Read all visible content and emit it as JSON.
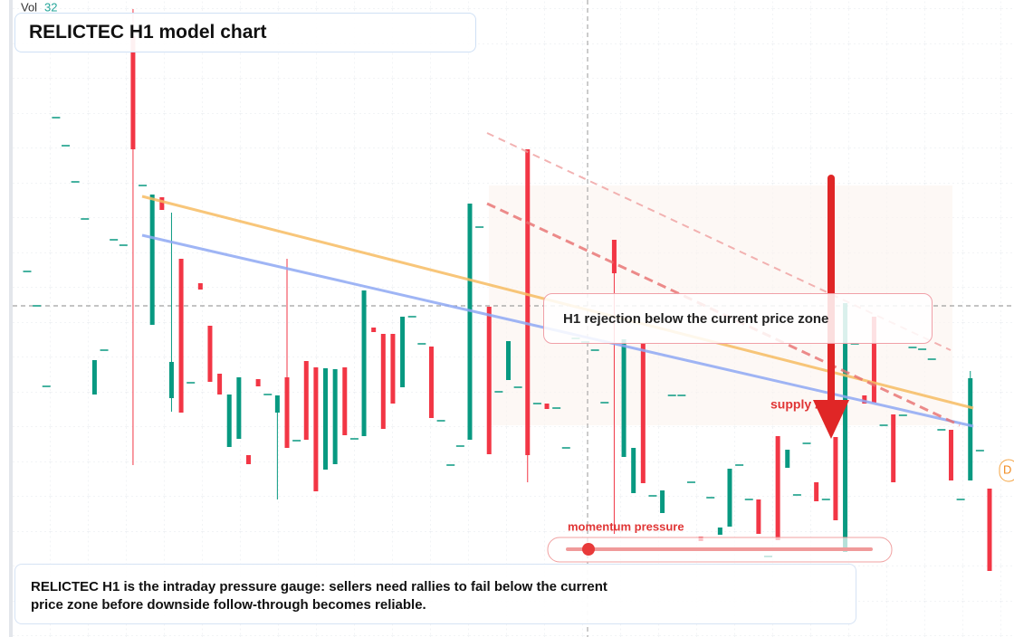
{
  "chart_data": {
    "type": "candlestick",
    "title": "RELICTEC H1 model chart",
    "volume_label": "Vol",
    "volume_value": 32,
    "annotation": "H1 rejection below the current price zone",
    "zone_label": "supply zone",
    "gauge_label": "momentum pressure",
    "edge_label": "D",
    "note": "RELICTEC H1 is the intraday pressure gauge: sellers need rallies to fail below the current price zone before downside follow-through becomes reliable.",
    "up_color": "#089981",
    "down_color": "#f23645",
    "ylim": [
      0,
      704
    ],
    "candles": [
      [
        404,
        404,
        404,
        404
      ],
      [
        366,
        366,
        366,
        366
      ],
      [
        277,
        277,
        277,
        277
      ],
      [
        574,
        574,
        574,
        574
      ],
      [
        543,
        543,
        543,
        543
      ],
      [
        503,
        503,
        503,
        503
      ],
      [
        462,
        462,
        462,
        462
      ],
      [
        268,
        306,
        268,
        306
      ],
      [
        317,
        317,
        317,
        317
      ],
      [
        439,
        439,
        439,
        439
      ],
      [
        433,
        433,
        433,
        433
      ],
      [
        664,
        694,
        190,
        539
      ],
      [
        499,
        499,
        499,
        499
      ],
      [
        345,
        489,
        345,
        489
      ],
      [
        486,
        486,
        472,
        472
      ],
      [
        264,
        469,
        249,
        304
      ],
      [
        418,
        418,
        248,
        248
      ],
      [
        281,
        281,
        281,
        281
      ],
      [
        391,
        391,
        384,
        384
      ],
      [
        344,
        344,
        282,
        282
      ],
      [
        291,
        291,
        268,
        268
      ],
      [
        210,
        268,
        210,
        268
      ],
      [
        219,
        287,
        219,
        287
      ],
      [
        201,
        201,
        191,
        191
      ],
      [
        285,
        285,
        277,
        277
      ],
      [
        268,
        268,
        268,
        268
      ],
      [
        248,
        267,
        152,
        267
      ],
      [
        287,
        418,
        209,
        209
      ],
      [
        217,
        217,
        217,
        217
      ],
      [
        305,
        305,
        218,
        218
      ],
      [
        298,
        298,
        161,
        161
      ],
      [
        185,
        297,
        185,
        297
      ],
      [
        191,
        296,
        191,
        296
      ],
      [
        298,
        298,
        223,
        223
      ],
      [
        219,
        219,
        219,
        219
      ],
      [
        222,
        383,
        222,
        383
      ],
      [
        342,
        342,
        337,
        337
      ],
      [
        335,
        335,
        230,
        230
      ],
      [
        335,
        335,
        258,
        258
      ],
      [
        276,
        354,
        276,
        354
      ],
      [
        354,
        354,
        354,
        354
      ],
      [
        324,
        324,
        324,
        324
      ],
      [
        321,
        321,
        242,
        242
      ],
      [
        239,
        239,
        239,
        239
      ],
      [
        190,
        190,
        190,
        190
      ],
      [
        211,
        211,
        211,
        211
      ],
      [
        218,
        479,
        218,
        479
      ],
      [
        453,
        453,
        453,
        453
      ],
      [
        365,
        365,
        202,
        202
      ],
      [
        271,
        271,
        271,
        271
      ],
      [
        284,
        327,
        284,
        327
      ],
      [
        276,
        276,
        276,
        276
      ],
      [
        539,
        539,
        171,
        201
      ],
      [
        258,
        258,
        258,
        258
      ],
      [
        258,
        258,
        252,
        252
      ],
      [
        253,
        253,
        253,
        253
      ],
      [
        209,
        209,
        209,
        209
      ],
      [
        330,
        330,
        330,
        330
      ],
      [
        326,
        326,
        326,
        326
      ],
      [
        317,
        317,
        317,
        317
      ],
      [
        259,
        259,
        259,
        259
      ],
      [
        439,
        439,
        114,
        402
      ],
      [
        199,
        329,
        199,
        329
      ],
      [
        159,
        209,
        159,
        209
      ],
      [
        324,
        324,
        170,
        170
      ],
      [
        156,
        156,
        156,
        156
      ],
      [
        137,
        162,
        137,
        162
      ],
      [
        267,
        267,
        267,
        267
      ],
      [
        267,
        267,
        267,
        267
      ],
      [
        171,
        171,
        171,
        171
      ],
      [
        111,
        111,
        106,
        106
      ],
      [
        154,
        154,
        154,
        154
      ],
      [
        113,
        121,
        113,
        121
      ],
      [
        122,
        186,
        122,
        186
      ],
      [
        190,
        190,
        190,
        190
      ],
      [
        152,
        152,
        152,
        152
      ],
      [
        152,
        152,
        114,
        114
      ],
      [
        89,
        89,
        89,
        89
      ],
      [
        222,
        222,
        107,
        107
      ],
      [
        187,
        207,
        187,
        207
      ],
      [
        157,
        157,
        157,
        157
      ],
      [
        214,
        214,
        214,
        214
      ],
      [
        171,
        171,
        150,
        150
      ],
      [
        152,
        152,
        152,
        152
      ],
      [
        221,
        221,
        129,
        129
      ],
      [
        94,
        369,
        94,
        369
      ],
      [
        324,
        324,
        324,
        324
      ],
      [
        267,
        267,
        258,
        258
      ],
      [
        354,
        354,
        259,
        259
      ],
      [
        234,
        234,
        234,
        234
      ],
      [
        246,
        246,
        171,
        171
      ],
      [
        245,
        245,
        245,
        245
      ],
      [
        320,
        320,
        320,
        320
      ],
      [
        318,
        318,
        318,
        318
      ],
      [
        307,
        307,
        307,
        307
      ],
      [
        229,
        229,
        229,
        229
      ],
      [
        229,
        229,
        173,
        173
      ],
      [
        152,
        152,
        152,
        152
      ],
      [
        173,
        294,
        173,
        286
      ],
      [
        206,
        206,
        206,
        206
      ],
      [
        164,
        164,
        73,
        73
      ]
    ]
  }
}
